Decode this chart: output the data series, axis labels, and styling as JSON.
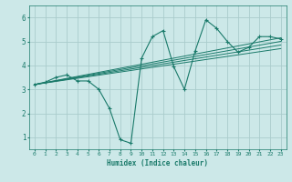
{
  "xlabel": "Humidex (Indice chaleur)",
  "background_color": "#cce8e8",
  "grid_color": "#aacccc",
  "line_color": "#1a7a6a",
  "xlim": [
    -0.5,
    23.5
  ],
  "ylim": [
    0.5,
    6.5
  ],
  "xticks": [
    0,
    1,
    2,
    3,
    4,
    5,
    6,
    7,
    8,
    9,
    10,
    11,
    12,
    13,
    14,
    15,
    16,
    17,
    18,
    19,
    20,
    21,
    22,
    23
  ],
  "yticks": [
    1,
    2,
    3,
    4,
    5,
    6
  ],
  "main_line": {
    "x": [
      0,
      1,
      2,
      3,
      4,
      5,
      6,
      7,
      8,
      9,
      10,
      11,
      12,
      13,
      14,
      15,
      16,
      17,
      18,
      19,
      20,
      21,
      22,
      23
    ],
    "y": [
      3.2,
      3.3,
      3.5,
      3.6,
      3.35,
      3.35,
      3.0,
      2.2,
      0.9,
      0.75,
      4.3,
      5.2,
      5.45,
      3.95,
      3.0,
      4.6,
      5.9,
      5.55,
      5.0,
      4.55,
      4.75,
      5.2,
      5.2,
      5.1
    ]
  },
  "trend_lines": [
    {
      "x": [
        0,
        23
      ],
      "y": [
        3.2,
        5.15
      ]
    },
    {
      "x": [
        0,
        23
      ],
      "y": [
        3.2,
        5.0
      ]
    },
    {
      "x": [
        0,
        23
      ],
      "y": [
        3.2,
        4.85
      ]
    },
    {
      "x": [
        0,
        23
      ],
      "y": [
        3.2,
        4.7
      ]
    }
  ]
}
